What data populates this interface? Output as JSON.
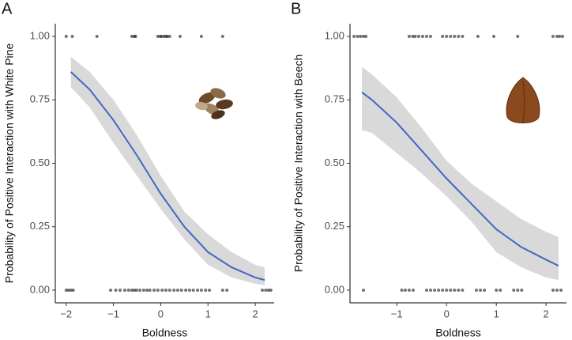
{
  "chart_data": [
    {
      "type": "line",
      "panel_label": "A",
      "xlabel": "Boldness",
      "ylabel": "Probability of Positive Interaction with White Pine",
      "xlim": [
        -2.23,
        2.4
      ],
      "ylim": [
        -0.05,
        1.05
      ],
      "xticks": [
        {
          "value": -2,
          "label": "−2"
        },
        {
          "value": -1,
          "label": "−1"
        },
        0,
        1,
        2
      ],
      "yticks": [
        {
          "value": 0,
          "label": "0.00"
        },
        {
          "value": 0.25,
          "label": "0.25"
        },
        {
          "value": 0.5,
          "label": "0.50"
        },
        {
          "value": 0.75,
          "label": "0.75"
        },
        {
          "value": 1,
          "label": "1.00"
        }
      ],
      "fit": {
        "color": "#4466c4",
        "band_color": "#d9d9d9",
        "x": [
          -1.9,
          -1.5,
          -1,
          -0.5,
          0,
          0.5,
          1,
          1.5,
          2,
          2.2
        ],
        "y": [
          0.86,
          0.79,
          0.67,
          0.53,
          0.38,
          0.25,
          0.15,
          0.09,
          0.05,
          0.04
        ],
        "lower": [
          0.8,
          0.72,
          0.58,
          0.45,
          0.32,
          0.2,
          0.1,
          0.05,
          0.025,
          0.02
        ],
        "upper": [
          0.92,
          0.86,
          0.75,
          0.61,
          0.45,
          0.31,
          0.22,
          0.15,
          0.1,
          0.09
        ]
      },
      "observations": {
        "color": "#000000",
        "x": [
          -2.0,
          -1.87,
          -1.35,
          -0.61,
          -0.56,
          -0.53,
          -0.06,
          -0.01,
          0.02,
          0.07,
          0.11,
          0.14,
          0.19,
          0.41,
          0.86,
          1.31,
          -2.0,
          -1.95,
          -1.9,
          -1.85,
          -1.06,
          -0.95,
          -0.86,
          -0.76,
          -0.68,
          -0.61,
          -0.56,
          -0.51,
          -0.44,
          -0.36,
          -0.29,
          -0.23,
          -0.14,
          -0.06,
          0.03,
          0.11,
          0.19,
          0.28,
          0.36,
          0.44,
          0.53,
          0.61,
          0.69,
          0.78,
          0.86,
          0.95,
          1.03,
          1.31,
          1.4,
          2.15,
          2.22,
          2.28,
          2.33
        ],
        "y": [
          1,
          1,
          1,
          1,
          1,
          1,
          1,
          1,
          1,
          1,
          1,
          1,
          1,
          1,
          1,
          1,
          0,
          0,
          0,
          0,
          0,
          0,
          0,
          0,
          0,
          0,
          0,
          0,
          0,
          0,
          0,
          0,
          0,
          0,
          0,
          0,
          0,
          0,
          0,
          0,
          0,
          0,
          0,
          0,
          0,
          0,
          0,
          0,
          0,
          0,
          0,
          0,
          0
        ]
      }
    },
    {
      "type": "line",
      "panel_label": "B",
      "xlabel": "Boldness",
      "ylabel": "Probability of Positive Interaction with Beech",
      "xlim": [
        -1.94,
        2.41
      ],
      "ylim": [
        -0.05,
        1.05
      ],
      "xticks": [
        {
          "value": -1,
          "label": "−1"
        },
        0,
        1,
        2
      ],
      "yticks": [
        {
          "value": 0,
          "label": "0.00"
        },
        {
          "value": 0.25,
          "label": "0.25"
        },
        {
          "value": 0.5,
          "label": "0.50"
        },
        {
          "value": 0.75,
          "label": "0.75"
        },
        {
          "value": 1,
          "label": "1.00"
        }
      ],
      "fit": {
        "color": "#4466c4",
        "band_color": "#d9d9d9",
        "x": [
          -1.7,
          -1.5,
          -1,
          -0.5,
          0,
          0.5,
          1,
          1.5,
          2,
          2.25
        ],
        "y": [
          0.78,
          0.75,
          0.66,
          0.55,
          0.44,
          0.34,
          0.24,
          0.17,
          0.12,
          0.096
        ],
        "lower": [
          0.63,
          0.62,
          0.54,
          0.46,
          0.37,
          0.27,
          0.15,
          0.09,
          0.05,
          0.04
        ],
        "upper": [
          0.88,
          0.85,
          0.76,
          0.64,
          0.51,
          0.42,
          0.35,
          0.28,
          0.23,
          0.21
        ]
      },
      "observations": {
        "color": "#000000",
        "x": [
          -1.86,
          -1.79,
          -1.73,
          -1.67,
          -1.62,
          -0.75,
          -0.68,
          -0.63,
          -0.56,
          -0.48,
          -0.4,
          -0.32,
          -0.08,
          0,
          0.08,
          0.16,
          0.24,
          0.32,
          0.63,
          0.95,
          1.43,
          2.14,
          2.22,
          2.27,
          2.33,
          -1.67,
          -0.9,
          -0.83,
          -0.75,
          -0.67,
          -0.4,
          -0.32,
          -0.24,
          -0.16,
          -0.08,
          0,
          0.08,
          0.16,
          0.24,
          0.32,
          0.6,
          0.68,
          0.76,
          1,
          1.08,
          1.35,
          1.43,
          1.51,
          2.14,
          2.22,
          2.3
        ],
        "y": [
          1,
          1,
          1,
          1,
          1,
          1,
          1,
          1,
          1,
          1,
          1,
          1,
          1,
          1,
          1,
          1,
          1,
          1,
          1,
          1,
          1,
          1,
          1,
          1,
          1,
          0,
          0,
          0,
          0,
          0,
          0,
          0,
          0,
          0,
          0,
          0,
          0,
          0,
          0,
          0,
          0,
          0,
          0,
          0,
          0,
          0,
          0,
          0,
          0,
          0,
          0
        ]
      }
    }
  ]
}
